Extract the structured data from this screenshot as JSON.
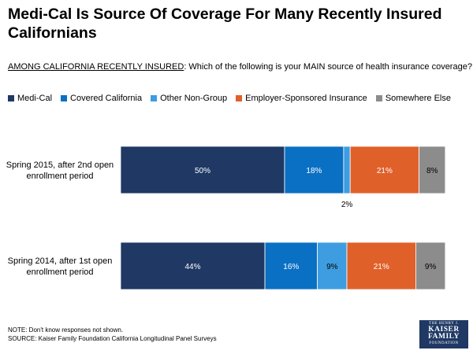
{
  "title": "Medi-Cal Is Source Of Coverage For Many Recently Insured Californians",
  "subtitle": {
    "prefix": "AMONG CALIFORNIA RECENTLY INSURED",
    "rest": ": Which of the following is your MAIN source of health insurance coverage?"
  },
  "chart_data": {
    "type": "bar",
    "orientation": "horizontal",
    "stacked": true,
    "categories": [
      "Spring 2015, after 2nd open enrollment period",
      "Spring 2014, after 1st open enrollment period"
    ],
    "series": [
      {
        "name": "Medi-Cal",
        "color": "#1f3864",
        "values": [
          50,
          44
        ],
        "labels": [
          "50%",
          "44%"
        ]
      },
      {
        "name": "Covered California",
        "color": "#0a70c4",
        "values": [
          18,
          16
        ],
        "labels": [
          "18%",
          "16%"
        ]
      },
      {
        "name": "Other Non-Group",
        "color": "#3e9de0",
        "values": [
          2,
          9
        ],
        "labels": [
          "2%",
          "9%"
        ]
      },
      {
        "name": "Employer-Sponsored Insurance",
        "color": "#e0602a",
        "values": [
          21,
          21
        ],
        "labels": [
          "21%",
          "21%"
        ]
      },
      {
        "name": "Somewhere Else",
        "color": "#8c8c8c",
        "values": [
          8,
          9
        ],
        "labels": [
          "8%",
          "9%"
        ]
      }
    ],
    "category_lines": [
      [
        "Spring 2015, after 2nd open",
        "enrollment period"
      ],
      [
        "Spring 2014, after 1st open",
        "enrollment period"
      ]
    ],
    "xlim": [
      0,
      100
    ],
    "grid": false,
    "legend_position": "top-left",
    "outside_labels": [
      {
        "category_index": 0,
        "series_index": 2,
        "text": "2%"
      }
    ]
  },
  "notes": {
    "note": "NOTE: Don't know responses not shown.",
    "source": "SOURCE: Kaiser Family Foundation California Longitudinal Panel Surveys"
  },
  "logo": {
    "line1": "THE HENRY J.",
    "line2a": "KAISER",
    "line2b": "FAMILY",
    "line3": "FOUNDATION"
  }
}
